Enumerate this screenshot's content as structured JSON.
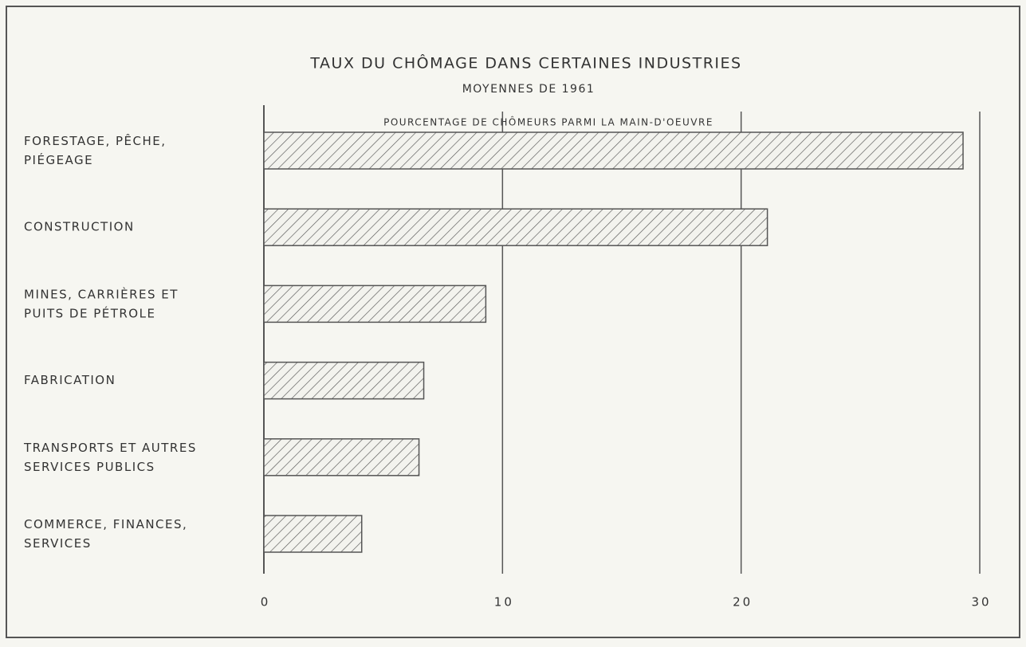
{
  "chart_data": {
    "type": "hbar",
    "title": "TAUX DU CHÔMAGE DANS CERTAINES INDUSTRIES",
    "subtitle": "MOYENNES DE 1961",
    "x_label": "POURCENTAGE DE CHÔMEURS PARMI LA MAIN-D'OEUVRE",
    "categories": [
      "FORESTAGE, PÊCHE,\nPIÉGEAGE",
      "CONSTRUCTION",
      "MINES, CARRIÈRES ET\nPUITS DE PÉTROLE",
      "FABRICATION",
      "TRANSPORTS ET AUTRES\nSERVICES PUBLICS",
      "COMMERCE, FINANCES,\nSERVICES"
    ],
    "values": [
      29.3,
      21.1,
      9.3,
      6.7,
      6.5,
      4.1
    ],
    "color": "#555555",
    "xlim": [
      0,
      30
    ],
    "xticks": [
      0,
      10,
      20,
      30
    ],
    "grid": true
  }
}
